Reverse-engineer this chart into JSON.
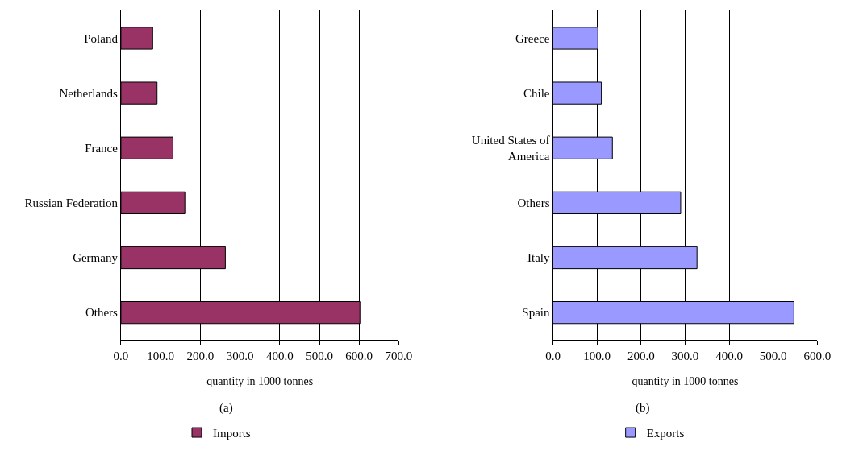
{
  "chart_data": [
    {
      "type": "bar",
      "orientation": "horizontal",
      "categories": [
        "Poland",
        "Netherlands",
        "France",
        "Russian Federation",
        "Germany",
        "Others"
      ],
      "series": [
        {
          "name": "Imports",
          "color": "#993366",
          "values": [
            80,
            91,
            131,
            161,
            263,
            602
          ]
        }
      ],
      "xlim": [
        0,
        700
      ],
      "xticks": [
        {
          "value": 0,
          "label": "0.0"
        },
        {
          "value": 100,
          "label": "100.0"
        },
        {
          "value": 200,
          "label": "200.0"
        },
        {
          "value": 300,
          "label": "300.0"
        },
        {
          "value": 400,
          "label": "400.0"
        },
        {
          "value": 500,
          "label": "500.0"
        },
        {
          "value": 600,
          "label": "600.0"
        },
        {
          "value": 700,
          "label": "700.0"
        }
      ],
      "xlabel": "quantity in 1000 tonnes",
      "annotations": [
        "(a)"
      ],
      "grid": "x",
      "legend": "bottom"
    },
    {
      "type": "bar",
      "orientation": "horizontal",
      "categories": [
        "Greece",
        "Chile",
        "United States of America",
        "Others",
        "Italy",
        "Spain"
      ],
      "series": [
        {
          "name": "Exports",
          "color": "#9999ff",
          "values": [
            102,
            110,
            135,
            290,
            327,
            547
          ]
        }
      ],
      "xlim": [
        0,
        600
      ],
      "xticks": [
        {
          "value": 0,
          "label": "0.0"
        },
        {
          "value": 100,
          "label": "100.0"
        },
        {
          "value": 200,
          "label": "200.0"
        },
        {
          "value": 300,
          "label": "300.0"
        },
        {
          "value": 400,
          "label": "400.0"
        },
        {
          "value": 500,
          "label": "500.0"
        },
        {
          "value": 600,
          "label": "600.0"
        }
      ],
      "xlabel": "quantity in 1000 tonnes",
      "annotations": [
        "(b)"
      ],
      "grid": "x",
      "legend": "bottom"
    }
  ]
}
